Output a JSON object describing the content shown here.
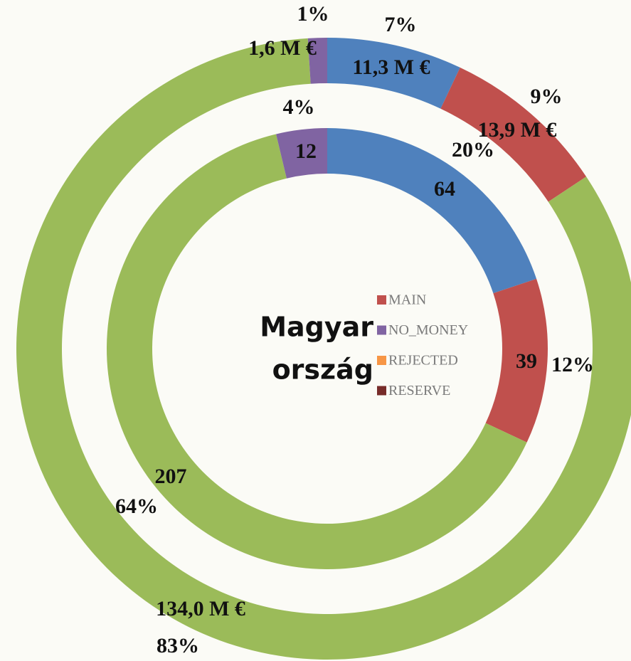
{
  "chart_data": {
    "type": "donut",
    "center_label": [
      "Magyar",
      "ország"
    ],
    "rings": [
      {
        "values": [
          11.3,
          13.9,
          134.0,
          1.6
        ],
        "value_labels": [
          "11,3 M €",
          "13,9 M €",
          "134,0 M €",
          "1,6 M €"
        ],
        "percent_labels": [
          "7%",
          "9%",
          "83%",
          "1%"
        ]
      },
      {
        "values": [
          64,
          39,
          207,
          12
        ],
        "percent_labels": [
          "20%",
          "12%",
          "64%",
          "4%"
        ]
      }
    ],
    "colors": [
      "#4f81bd",
      "#c0504d",
      "#9bbb59",
      "#8064a2"
    ],
    "legend": [
      {
        "name": "MAIN",
        "color": "#c0504d"
      },
      {
        "name": "NO_MONEY",
        "color": "#8064a2"
      },
      {
        "name": "REJECTED",
        "color": "#f79646"
      },
      {
        "name": "RESERVE",
        "color": "#772c2a"
      }
    ]
  }
}
